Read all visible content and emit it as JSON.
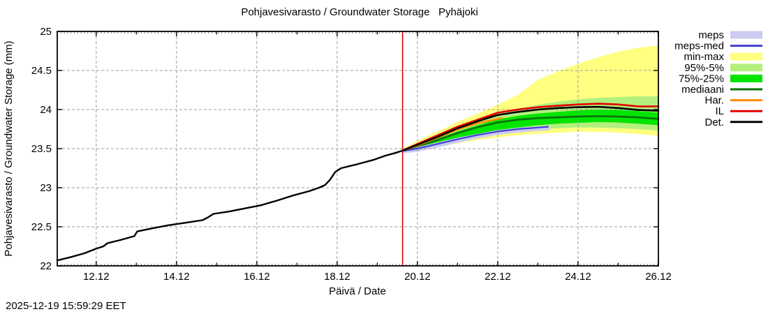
{
  "page": {
    "timestamp": "2025-12-19 15:59:29 EET"
  },
  "chart_data": {
    "type": "line",
    "title": "Pohjavesivarasto / Groundwater Storage   Pyhäjoki",
    "xlabel": "Päivä / Date",
    "ylabel": "Pohjavesivarasto / Groundwater Storage (mm)",
    "x_unit": "day of December (d.12)",
    "xlim": [
      11.03,
      26.0
    ],
    "ylim": [
      22,
      25
    ],
    "grid": true,
    "xticks": [
      {
        "day": 12,
        "label": "12.12"
      },
      {
        "day": 14,
        "label": "14.12"
      },
      {
        "day": 16,
        "label": "16.12"
      },
      {
        "day": 18,
        "label": "18.12"
      },
      {
        "day": 20,
        "label": "20.12"
      },
      {
        "day": 22,
        "label": "22.12"
      },
      {
        "day": 24,
        "label": "24.12"
      },
      {
        "day": 26,
        "label": "26.12"
      }
    ],
    "xticks_minor": [
      13,
      15,
      17,
      19,
      21,
      23,
      25
    ],
    "yticks": [
      {
        "v": 22,
        "label": "22"
      },
      {
        "v": 22.5,
        "label": "22.5"
      },
      {
        "v": 23,
        "label": "23"
      },
      {
        "v": 23.5,
        "label": "23.5"
      },
      {
        "v": 24,
        "label": "24"
      },
      {
        "v": 24.5,
        "label": "24.5"
      },
      {
        "v": 25,
        "label": "25"
      }
    ],
    "now_line": {
      "day": 19.63,
      "color": "#e40000"
    },
    "bands": [
      {
        "name": "min-max",
        "color": "#ffff80",
        "x": [
          19.63,
          20,
          20.5,
          21,
          21.5,
          22,
          22.5,
          23,
          23.5,
          24,
          24.5,
          25,
          25.5,
          26
        ],
        "upper": [
          23.5,
          23.6,
          23.72,
          23.84,
          23.95,
          24.06,
          24.19,
          24.38,
          24.49,
          24.585,
          24.67,
          24.74,
          24.79,
          24.82
        ],
        "lower": [
          23.455,
          23.47,
          23.52,
          23.57,
          23.61,
          23.645,
          23.67,
          23.69,
          23.705,
          23.715,
          23.715,
          23.705,
          23.685,
          23.665
        ]
      },
      {
        "name": "95%-5%",
        "color": "#b3f07d",
        "x": [
          19.63,
          20,
          20.5,
          21,
          21.5,
          22,
          22.5,
          23,
          23.5,
          24,
          24.5,
          25,
          25.5,
          26
        ],
        "upper": [
          23.49,
          23.57,
          23.66,
          23.76,
          23.855,
          23.945,
          24.01,
          24.06,
          24.1,
          24.13,
          24.15,
          24.16,
          24.17,
          24.17
        ],
        "lower": [
          23.465,
          23.49,
          23.55,
          23.61,
          23.66,
          23.7,
          23.725,
          23.745,
          23.76,
          23.77,
          23.77,
          23.76,
          23.75,
          23.73
        ]
      },
      {
        "name": "75%-25%",
        "color": "#00e400",
        "x": [
          19.63,
          20,
          20.5,
          21,
          21.5,
          22,
          22.5,
          23,
          23.5,
          24,
          24.5,
          25,
          25.5,
          26
        ],
        "upper": [
          23.485,
          23.55,
          23.63,
          23.72,
          23.8,
          23.875,
          23.92,
          23.95,
          23.97,
          23.99,
          24.0,
          23.995,
          23.98,
          23.96
        ],
        "lower": [
          23.47,
          23.51,
          23.57,
          23.63,
          23.69,
          23.74,
          23.77,
          23.8,
          23.82,
          23.83,
          23.84,
          23.835,
          23.82,
          23.8
        ]
      },
      {
        "name": "meps",
        "color": "#ccccf2",
        "x": [
          19.63,
          20,
          20.5,
          21,
          21.5,
          22,
          22.5,
          23,
          23.3
        ],
        "upper": [
          23.48,
          23.52,
          23.58,
          23.64,
          23.69,
          23.735,
          23.765,
          23.785,
          23.795
        ],
        "lower": [
          23.44,
          23.46,
          23.515,
          23.575,
          23.63,
          23.675,
          23.705,
          23.725,
          23.735
        ]
      }
    ],
    "lines": [
      {
        "name": "observed-history",
        "color": "#000000",
        "width": 2.4,
        "x": [
          11.03,
          11.35,
          11.7,
          12.0,
          12.18,
          12.28,
          12.6,
          12.95,
          13.02,
          13.4,
          13.8,
          14.2,
          14.65,
          14.78,
          14.92,
          15.3,
          15.7,
          16.1,
          16.5,
          16.9,
          17.3,
          17.55,
          17.7,
          17.82,
          17.95,
          18.1,
          18.5,
          18.9,
          19.2,
          19.45,
          19.63
        ],
        "y": [
          22.07,
          22.11,
          22.16,
          22.22,
          22.25,
          22.29,
          22.33,
          22.38,
          22.44,
          22.48,
          22.52,
          22.55,
          22.585,
          22.62,
          22.665,
          22.695,
          22.735,
          22.775,
          22.835,
          22.9,
          22.955,
          23.0,
          23.035,
          23.1,
          23.2,
          23.25,
          23.3,
          23.355,
          23.41,
          23.445,
          23.475
        ]
      },
      {
        "name": "meps-med",
        "color": "#4040d0",
        "width": 2.2,
        "x": [
          19.63,
          20,
          20.5,
          21,
          21.5,
          22,
          22.5,
          23,
          23.25
        ],
        "y": [
          23.47,
          23.5,
          23.56,
          23.62,
          23.675,
          23.72,
          23.75,
          23.77,
          23.78
        ]
      },
      {
        "name": "mediaani",
        "color": "#0a700a",
        "width": 2.6,
        "x": [
          19.63,
          20,
          20.5,
          21,
          21.5,
          22,
          22.5,
          23,
          23.5,
          24,
          24.5,
          25,
          25.5,
          26
        ],
        "y": [
          23.475,
          23.53,
          23.61,
          23.7,
          23.775,
          23.835,
          23.87,
          23.89,
          23.9,
          23.91,
          23.915,
          23.91,
          23.9,
          23.88
        ]
      },
      {
        "name": "Har.",
        "color": "#ff8c00",
        "width": 2.6,
        "x": [
          19.63,
          20,
          20.5,
          21,
          21.5,
          22,
          22.1
        ],
        "y": [
          23.475,
          23.54,
          23.64,
          23.745,
          23.825,
          23.88,
          23.89
        ]
      },
      {
        "name": "IL",
        "color": "#e40000",
        "width": 2.6,
        "x": [
          19.63,
          20,
          20.5,
          21,
          21.5,
          22,
          22.5,
          23,
          23.5,
          24,
          24.5,
          25,
          25.5,
          26
        ],
        "y": [
          23.475,
          23.56,
          23.67,
          23.78,
          23.87,
          23.96,
          24.0,
          24.03,
          24.05,
          24.065,
          24.075,
          24.065,
          24.04,
          24.04
        ]
      },
      {
        "name": "Det.",
        "color": "#000000",
        "width": 2.6,
        "x": [
          19.63,
          20,
          20.5,
          21,
          21.5,
          22,
          22.5,
          23,
          23.5,
          24,
          24.5,
          25,
          25.5,
          26
        ],
        "y": [
          23.475,
          23.55,
          23.65,
          23.76,
          23.85,
          23.93,
          23.97,
          24.0,
          24.02,
          24.03,
          24.035,
          24.02,
          23.995,
          23.985
        ]
      }
    ],
    "legend": [
      {
        "label": "meps",
        "type": "band",
        "color": "#ccccf2"
      },
      {
        "label": "meps-med",
        "type": "line",
        "color": "#4040d0"
      },
      {
        "label": "min-max",
        "type": "band",
        "color": "#ffff80"
      },
      {
        "label": "95%-5%",
        "type": "band",
        "color": "#b3f07d"
      },
      {
        "label": "75%-25%",
        "type": "band",
        "color": "#00e400"
      },
      {
        "label": "mediaani",
        "type": "line",
        "color": "#0a700a"
      },
      {
        "label": "Har.",
        "type": "line",
        "color": "#ff8c00"
      },
      {
        "label": "IL",
        "type": "line",
        "color": "#e40000"
      },
      {
        "label": "Det.",
        "type": "line",
        "color": "#000000"
      }
    ]
  }
}
